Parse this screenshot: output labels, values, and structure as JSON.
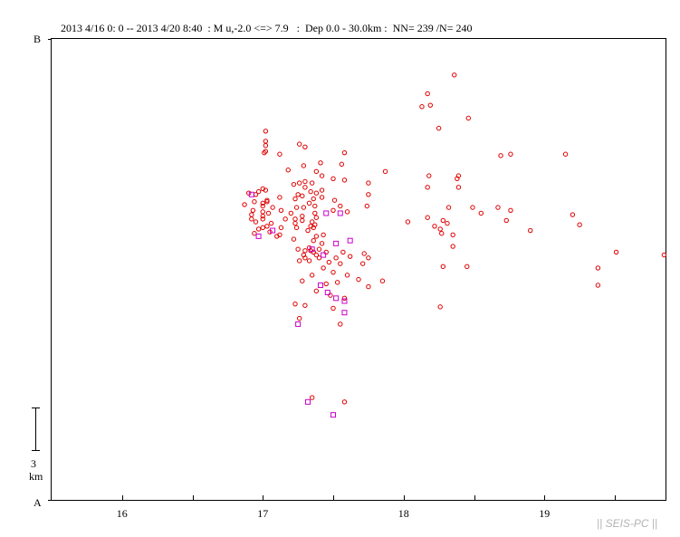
{
  "header": {
    "text": "2013 4/16 0: 0 -- 2013 4/20 8:40  : M u,-2.0 <=> 7.9   :  Dep 0.0 - 30.0km :  NN= 239 /N= 240"
  },
  "brand": "|| SEIS-PC ||",
  "chart_data": {
    "type": "scatter",
    "title": "2013 4/16 0: 0 -- 2013 4/20 8:40  : M u,-2.0 <=> 7.9   :  Dep 0.0 - 30.0km :  NN= 239 /N= 240",
    "xlabel": "",
    "ylabel": "",
    "x_ticks": [
      "16",
      "17",
      "18",
      "19"
    ],
    "xlim": [
      15.5,
      19.86
    ],
    "ylim": [
      0,
      32
    ],
    "y_end_labels": {
      "bottom": "A",
      "top": "B"
    },
    "scale_bar": {
      "value": "3",
      "unit": "km",
      "length_km": 3
    },
    "colors": {
      "circle": "#e00000",
      "square": "#cc00cc",
      "axis": "#000000"
    },
    "series": [
      {
        "marker": "circle",
        "points": [
          [
            18.36,
            29.5
          ],
          [
            18.17,
            28.2
          ],
          [
            18.13,
            27.3
          ],
          [
            18.19,
            27.4
          ],
          [
            18.46,
            26.5
          ],
          [
            18.25,
            25.8
          ],
          [
            17.02,
            25.6
          ],
          [
            17.02,
            24.9
          ],
          [
            17.02,
            24.6
          ],
          [
            17.26,
            24.7
          ],
          [
            17.3,
            24.5
          ],
          [
            17.02,
            24.2
          ],
          [
            17.01,
            24.1
          ],
          [
            17.58,
            24.1
          ],
          [
            17.12,
            24.0
          ],
          [
            18.76,
            24.0
          ],
          [
            18.69,
            23.9
          ],
          [
            19.15,
            24.0
          ],
          [
            17.56,
            23.3
          ],
          [
            17.41,
            23.4
          ],
          [
            17.29,
            23.2
          ],
          [
            17.18,
            22.9
          ],
          [
            17.38,
            22.8
          ],
          [
            17.87,
            22.8
          ],
          [
            17.42,
            22.5
          ],
          [
            18.18,
            22.5
          ],
          [
            18.39,
            22.5
          ],
          [
            17.5,
            22.3
          ],
          [
            18.38,
            22.3
          ],
          [
            17.58,
            22.2
          ],
          [
            17.3,
            22.1
          ],
          [
            17.35,
            22.0
          ],
          [
            17.26,
            22.0
          ],
          [
            17.22,
            21.9
          ],
          [
            17.75,
            22.0
          ],
          [
            18.17,
            21.7
          ],
          [
            18.39,
            21.7
          ],
          [
            17.3,
            21.7
          ],
          [
            17.0,
            21.6
          ],
          [
            17.02,
            21.5
          ],
          [
            16.97,
            21.4
          ],
          [
            17.42,
            21.5
          ],
          [
            17.34,
            21.4
          ],
          [
            17.75,
            21.2
          ],
          [
            16.9,
            21.3
          ],
          [
            16.95,
            21.2
          ],
          [
            17.25,
            21.2
          ],
          [
            17.38,
            21.3
          ],
          [
            17.28,
            21.1
          ],
          [
            17.42,
            21.0
          ],
          [
            17.12,
            21.0
          ],
          [
            17.03,
            20.8
          ],
          [
            17.36,
            20.9
          ],
          [
            17.23,
            20.9
          ],
          [
            17.51,
            20.8
          ],
          [
            17.03,
            20.7
          ],
          [
            17.33,
            20.6
          ],
          [
            17.0,
            20.6
          ],
          [
            16.94,
            20.7
          ],
          [
            16.87,
            20.5
          ],
          [
            17.0,
            20.4
          ],
          [
            17.37,
            20.4
          ],
          [
            17.55,
            20.4
          ],
          [
            17.07,
            20.3
          ],
          [
            18.67,
            20.3
          ],
          [
            18.76,
            20.1
          ],
          [
            17.74,
            20.4
          ],
          [
            17.24,
            20.3
          ],
          [
            17.29,
            20.3
          ],
          [
            18.32,
            20.3
          ],
          [
            18.49,
            20.3
          ],
          [
            18.55,
            19.9
          ],
          [
            17.5,
            20.1
          ],
          [
            17.6,
            20.0
          ],
          [
            16.93,
            20.1
          ],
          [
            17.0,
            20.0
          ],
          [
            17.13,
            20.1
          ],
          [
            17.2,
            19.9
          ],
          [
            17.37,
            19.9
          ],
          [
            17.04,
            19.9
          ],
          [
            19.2,
            19.8
          ],
          [
            16.92,
            19.8
          ],
          [
            17.0,
            19.7
          ],
          [
            17.28,
            19.7
          ],
          [
            17.38,
            19.6
          ],
          [
            18.17,
            19.6
          ],
          [
            17.0,
            19.5
          ],
          [
            17.16,
            19.5
          ],
          [
            16.92,
            19.5
          ],
          [
            17.23,
            19.5
          ],
          [
            17.23,
            19.2
          ],
          [
            17.35,
            19.3
          ],
          [
            18.28,
            19.4
          ],
          [
            18.03,
            19.3
          ],
          [
            18.73,
            19.4
          ],
          [
            17.28,
            19.4
          ],
          [
            16.95,
            19.3
          ],
          [
            17.06,
            19.2
          ],
          [
            18.31,
            19.2
          ],
          [
            19.25,
            19.1
          ],
          [
            17.37,
            19.1
          ],
          [
            17.03,
            19.0
          ],
          [
            17.34,
            19.0
          ],
          [
            18.22,
            19.0
          ],
          [
            17.0,
            18.9
          ],
          [
            17.13,
            18.9
          ],
          [
            17.24,
            18.9
          ],
          [
            17.36,
            18.9
          ],
          [
            16.97,
            18.8
          ],
          [
            18.26,
            18.8
          ],
          [
            18.9,
            18.7
          ],
          [
            17.32,
            18.7
          ],
          [
            17.05,
            18.6
          ],
          [
            16.94,
            18.5
          ],
          [
            18.27,
            18.5
          ],
          [
            17.12,
            18.4
          ],
          [
            17.43,
            18.4
          ],
          [
            17.1,
            18.3
          ],
          [
            17.38,
            18.3
          ],
          [
            18.35,
            18.4
          ],
          [
            17.22,
            18.1
          ],
          [
            17.36,
            18.0
          ],
          [
            17.42,
            17.8
          ],
          [
            17.33,
            17.5
          ],
          [
            18.35,
            17.6
          ],
          [
            17.4,
            17.4
          ],
          [
            17.25,
            17.4
          ],
          [
            17.3,
            17.3
          ],
          [
            17.34,
            17.3
          ],
          [
            17.36,
            17.2
          ],
          [
            17.45,
            17.2
          ],
          [
            17.57,
            17.2
          ],
          [
            17.72,
            17.1
          ],
          [
            17.62,
            16.9
          ],
          [
            17.29,
            17.0
          ],
          [
            17.38,
            17.0
          ],
          [
            19.85,
            17.0
          ],
          [
            19.51,
            17.2
          ],
          [
            17.52,
            16.8
          ],
          [
            17.75,
            16.8
          ],
          [
            17.3,
            16.8
          ],
          [
            17.4,
            16.8
          ],
          [
            17.26,
            16.6
          ],
          [
            17.33,
            16.6
          ],
          [
            17.47,
            16.5
          ],
          [
            17.55,
            16.4
          ],
          [
            17.71,
            16.4
          ],
          [
            17.43,
            16.1
          ],
          [
            18.28,
            16.2
          ],
          [
            18.45,
            16.2
          ],
          [
            19.38,
            16.1
          ],
          [
            17.5,
            15.8
          ],
          [
            17.35,
            15.6
          ],
          [
            17.6,
            15.6
          ],
          [
            17.68,
            15.3
          ],
          [
            17.85,
            15.2
          ],
          [
            17.45,
            15.0
          ],
          [
            17.28,
            15.2
          ],
          [
            17.53,
            15.1
          ],
          [
            17.75,
            14.8
          ],
          [
            19.38,
            14.9
          ],
          [
            17.38,
            14.5
          ],
          [
            17.48,
            14.2
          ],
          [
            17.58,
            14.0
          ],
          [
            17.23,
            13.6
          ],
          [
            17.3,
            13.5
          ],
          [
            17.5,
            13.3
          ],
          [
            18.26,
            13.4
          ],
          [
            17.26,
            12.6
          ],
          [
            17.55,
            12.2
          ],
          [
            17.35,
            7.1
          ],
          [
            17.58,
            6.8
          ]
        ]
      },
      {
        "marker": "square",
        "points": [
          [
            16.92,
            21.2
          ],
          [
            17.45,
            19.9
          ],
          [
            17.55,
            19.9
          ],
          [
            16.97,
            18.3
          ],
          [
            17.07,
            18.7
          ],
          [
            17.52,
            17.8
          ],
          [
            17.62,
            18.0
          ],
          [
            17.35,
            17.4
          ],
          [
            17.43,
            17.0
          ],
          [
            17.41,
            14.9
          ],
          [
            17.46,
            14.4
          ],
          [
            17.52,
            14.0
          ],
          [
            17.58,
            13.8
          ],
          [
            17.58,
            13.0
          ],
          [
            17.25,
            12.2
          ],
          [
            17.32,
            6.8
          ],
          [
            17.5,
            5.9
          ]
        ]
      }
    ]
  }
}
